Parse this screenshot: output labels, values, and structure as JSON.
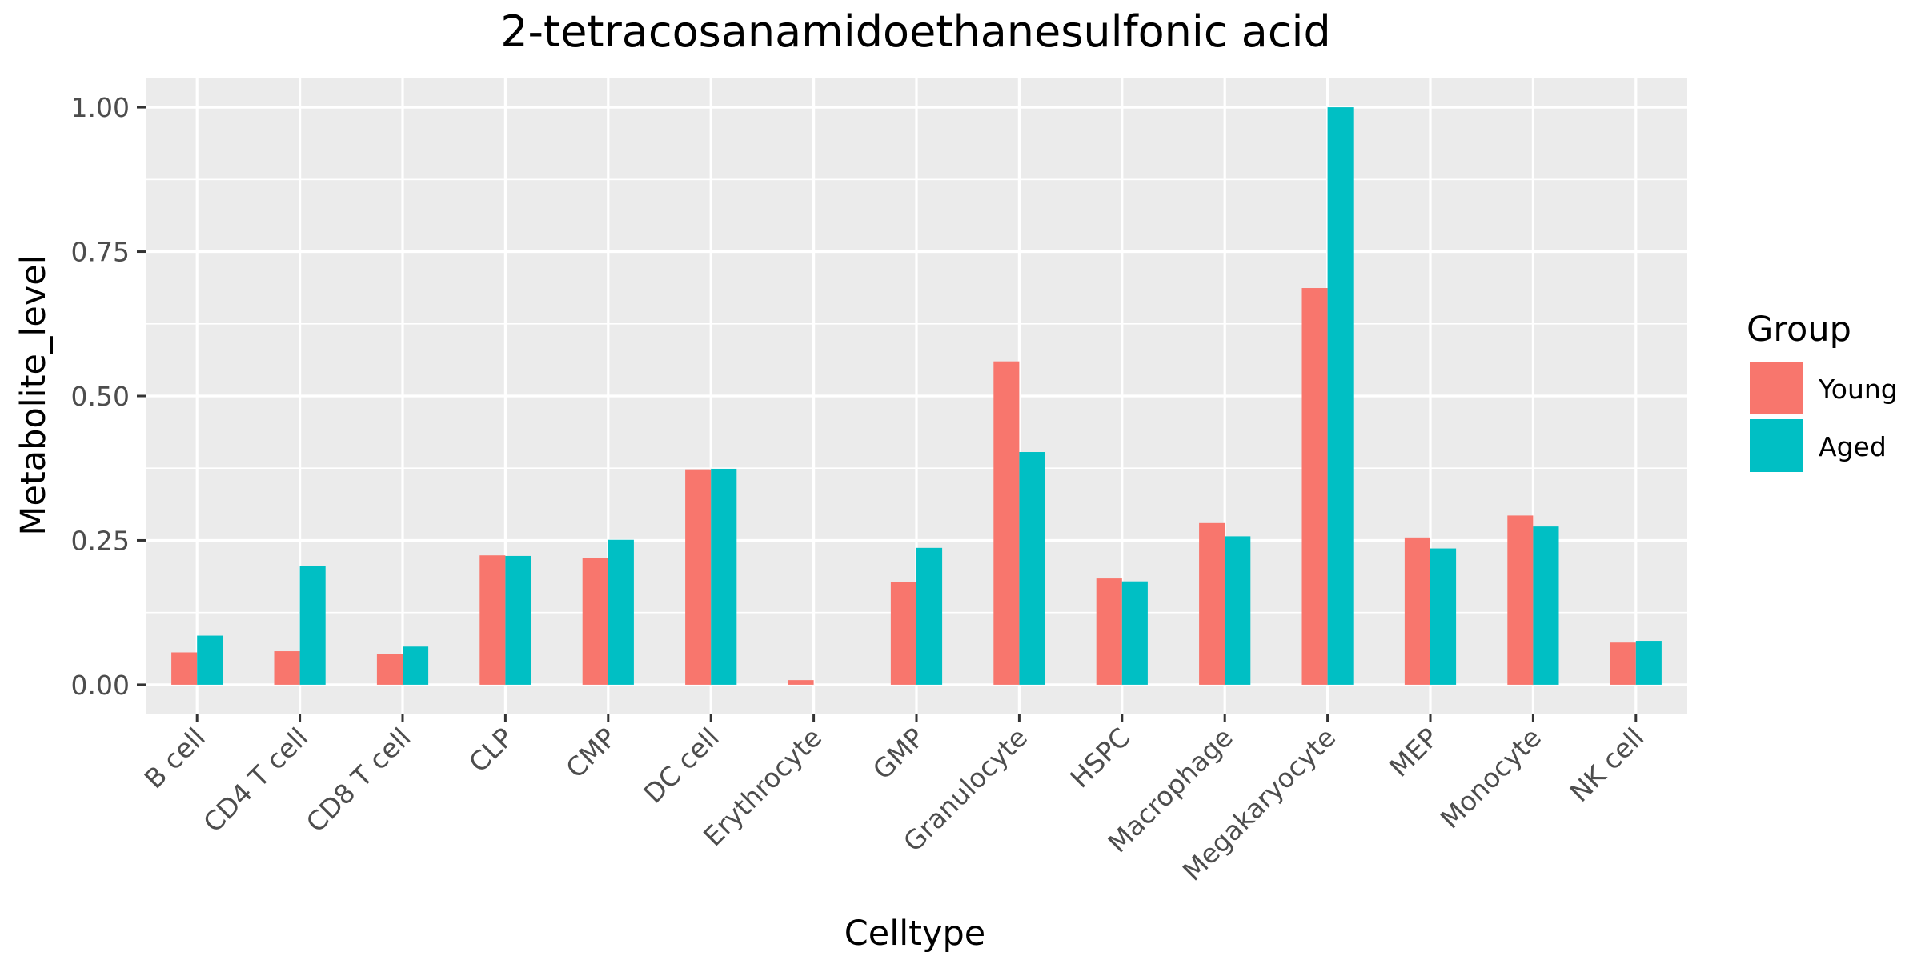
{
  "chart_data": {
    "type": "bar",
    "title": "2-tetracosanamidoethanesulfonic acid",
    "xlabel": "Celltype",
    "ylabel": "Metabolite_level",
    "ylim": [
      -0.05,
      1.05
    ],
    "yticks": [
      0,
      0.25,
      0.5,
      0.75,
      1
    ],
    "ytick_labels": [
      "0.00",
      "0.25",
      "0.50",
      "0.75",
      "1.00"
    ],
    "categories": [
      "B cell",
      "CD4 T cell",
      "CD8 T cell",
      "CLP",
      "CMP",
      "DC cell",
      "Erythrocyte",
      "GMP",
      "Granulocyte",
      "HSPC",
      "Macrophage",
      "Megakaryocyte",
      "MEP",
      "Monocyte",
      "NK cell"
    ],
    "series": [
      {
        "name": "Young",
        "color": "#F8766D",
        "values": [
          0.056,
          0.058,
          0.053,
          0.224,
          0.22,
          0.373,
          0.008,
          0.178,
          0.56,
          0.184,
          0.28,
          0.687,
          0.255,
          0.293,
          0.073
        ]
      },
      {
        "name": "Aged",
        "color": "#00BFC4",
        "values": [
          0.085,
          0.206,
          0.066,
          0.223,
          0.251,
          0.374,
          0.0,
          0.237,
          0.403,
          0.179,
          0.257,
          1.0,
          0.236,
          0.274,
          0.076
        ]
      }
    ],
    "legend": {
      "title": "Group",
      "placement": "right"
    },
    "grid": true,
    "panel_background": "#EBEBEB",
    "gridline_color": "#FFFFFF"
  }
}
